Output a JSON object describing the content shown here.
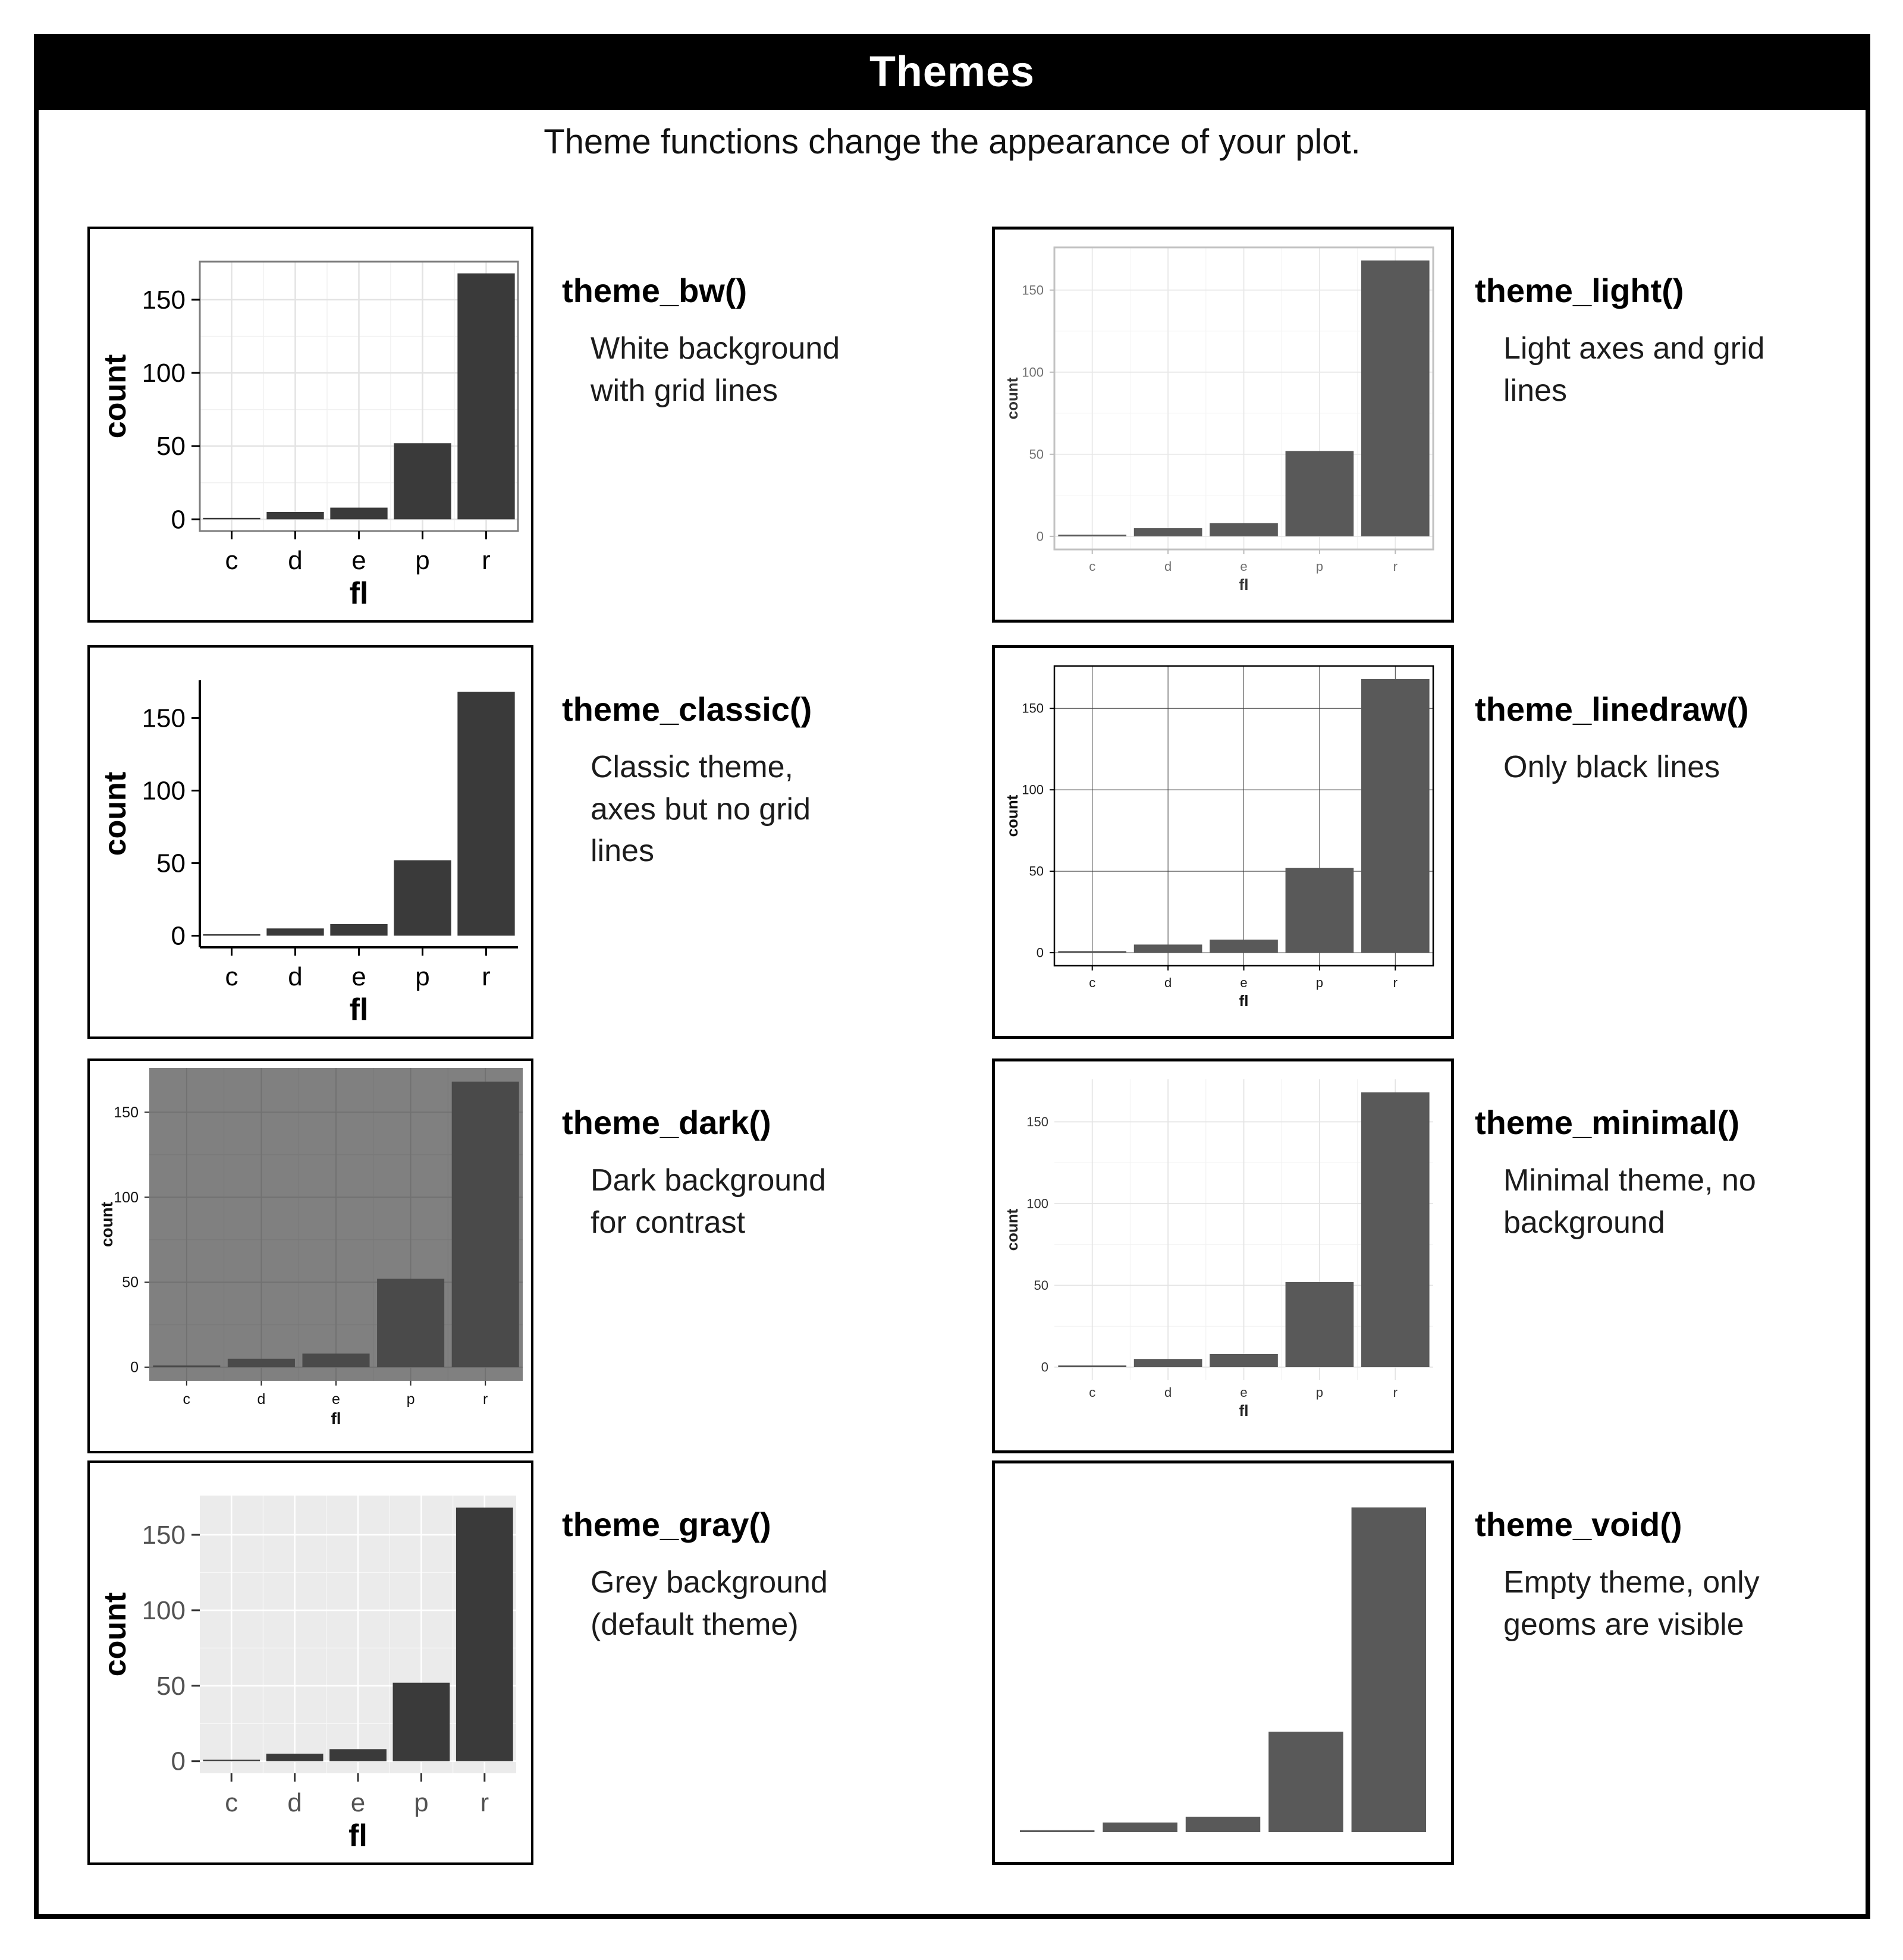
{
  "page": {
    "title_bar": "Themes",
    "subtitle": "Theme functions change the appearance of your plot."
  },
  "chart_data": {
    "type": "bar",
    "title": "",
    "categories": [
      "c",
      "d",
      "e",
      "p",
      "r"
    ],
    "values": [
      1,
      5,
      8,
      52,
      168
    ],
    "xlabel": "fl",
    "ylabel": "count",
    "yticks": [
      0,
      50,
      100,
      150
    ],
    "ylim": [
      0,
      176
    ],
    "legend": "none",
    "note": "same bar chart of mpg fuel type counts repeated once per ggplot2 theme"
  },
  "themes": [
    {
      "id": "bw",
      "name": "theme_bw()",
      "desc": "White background\nwith grid lines",
      "colors": {
        "bar": "#3a3a3a",
        "panel_bg": "#ffffff",
        "grid_major": "#e3e3e3",
        "grid_minor": "#f1f1f1",
        "border": "#7d7d7d",
        "tick": "#000000",
        "label": "#000000",
        "axis_title": "#000000"
      }
    },
    {
      "id": "light",
      "name": "theme_light()",
      "desc": "Light axes and grid\nlines",
      "colors": {
        "bar": "#595959",
        "panel_bg": "#ffffff",
        "grid_major": "#e8e8e8",
        "grid_minor": "#f4f4f4",
        "border": "#c2c2c2",
        "tick": "#bbbbbb",
        "label": "#707070",
        "axis_title": "#333333"
      }
    },
    {
      "id": "classic",
      "name": "theme_classic()",
      "desc": "Classic theme,\naxes but no grid\nlines",
      "colors": {
        "bar": "#3a3a3a",
        "panel_bg": "#ffffff",
        "axis_line": "#000000",
        "tick": "#000000",
        "label": "#000000",
        "axis_title": "#000000"
      }
    },
    {
      "id": "linedraw",
      "name": "theme_linedraw()",
      "desc": "Only black lines",
      "colors": {
        "bar": "#595959",
        "panel_bg": "#ffffff",
        "grid_major": "#3c3c3c",
        "border": "#000000",
        "tick": "#000000",
        "label": "#1a1a1a",
        "axis_title": "#111111"
      }
    },
    {
      "id": "dark",
      "name": "theme_dark()",
      "desc": "Dark background\nfor contrast",
      "colors": {
        "bar": "#4a4a4a",
        "panel_bg": "#808080",
        "grid_major": "#717171",
        "grid_minor": "#797979",
        "tick": "#2b2b2b",
        "label": "#111111",
        "axis_title": "#111111"
      }
    },
    {
      "id": "minimal",
      "name": "theme_minimal()",
      "desc": "Minimal theme, no\nbackground",
      "colors": {
        "bar": "#595959",
        "panel_bg": "#ffffff",
        "grid_major": "#e4e4e4",
        "grid_minor": "#f1f1f1",
        "label": "#333333",
        "axis_title": "#222222"
      }
    },
    {
      "id": "gray",
      "name": "theme_gray()",
      "desc": "Grey background\n(default theme)",
      "colors": {
        "bar": "#3a3a3a",
        "panel_bg": "#ebebeb",
        "grid_major": "#ffffff",
        "grid_minor": "#f7f7f7",
        "tick": "#333333",
        "label": "#525252",
        "axis_title": "#000000"
      }
    },
    {
      "id": "void",
      "name": "theme_void()",
      "desc": "Empty theme, only\ngeoms are visible",
      "colors": {
        "bar": "#595959"
      }
    }
  ]
}
